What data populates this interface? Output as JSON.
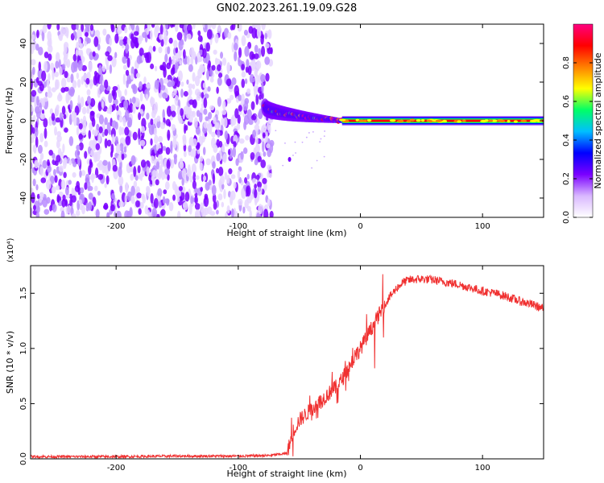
{
  "figure": {
    "title": "GN02.2023.261.19.09.G28"
  },
  "chart_data": [
    {
      "type": "heatmap",
      "panel": "top",
      "xlabel": "Height of straight line (km)",
      "ylabel": "Frequency (Hz)",
      "xlim": [
        -270,
        150
      ],
      "ylim": [
        -50,
        50
      ],
      "x_ticks": [
        -200,
        -100,
        0,
        100
      ],
      "y_ticks": [
        -40,
        -20,
        0,
        20,
        40
      ],
      "colorbar": {
        "label": "Normalized spectral amplitude",
        "range": [
          0,
          1
        ],
        "ticks": [
          0.0,
          0.2,
          0.4,
          0.6,
          0.8
        ],
        "colormap": [
          "#ffffff",
          "#d9b8ff",
          "#7a00ff",
          "#0000ff",
          "#00bfff",
          "#00ff66",
          "#ffff00",
          "#ff8000",
          "#ff0000",
          "#ff0080"
        ]
      },
      "regions": [
        {
          "name": "noise",
          "x_range": [
            -270,
            -75
          ],
          "frequency_range": [
            -50,
            50
          ],
          "amplitude_range": [
            0.0,
            0.15
          ]
        },
        {
          "name": "signal_onset",
          "x_range": [
            -78,
            -15
          ],
          "frequency_start": 7,
          "frequency_end": 0,
          "amplitude_range": [
            0.3,
            1.0
          ]
        },
        {
          "name": "tone",
          "x_range": [
            -15,
            150
          ],
          "frequency": 0,
          "amplitude": 1.0
        }
      ],
      "grid": false
    },
    {
      "type": "line",
      "panel": "bottom",
      "xlabel": "Height of straight line (km)",
      "ylabel": "SNR (10 * v/v)",
      "y_multiplier": "(x10⁴)",
      "xlim": [
        -270,
        150
      ],
      "ylim": [
        0,
        1.75
      ],
      "x_ticks": [
        -200,
        -100,
        0,
        100
      ],
      "y_ticks": [
        0.0,
        0.5,
        1.0,
        1.5
      ],
      "grid": false,
      "series": [
        {
          "color": "#f03030",
          "x": [
            -270,
            -200,
            -150,
            -100,
            -75,
            -60,
            -55,
            -50,
            -45,
            -40,
            -35,
            -30,
            -25,
            -20,
            -15,
            -10,
            -5,
            0,
            5,
            10,
            15,
            20,
            25,
            30,
            35,
            40,
            50,
            60,
            70,
            80,
            90,
            100,
            110,
            120,
            130,
            140,
            150
          ],
          "y": [
            0.02,
            0.02,
            0.025,
            0.025,
            0.03,
            0.05,
            0.25,
            0.35,
            0.4,
            0.45,
            0.5,
            0.55,
            0.6,
            0.65,
            0.72,
            0.82,
            0.92,
            1.0,
            1.1,
            1.2,
            1.3,
            1.4,
            1.48,
            1.55,
            1.6,
            1.62,
            1.63,
            1.62,
            1.6,
            1.58,
            1.55,
            1.52,
            1.5,
            1.47,
            1.43,
            1.4,
            1.36
          ]
        }
      ]
    }
  ]
}
